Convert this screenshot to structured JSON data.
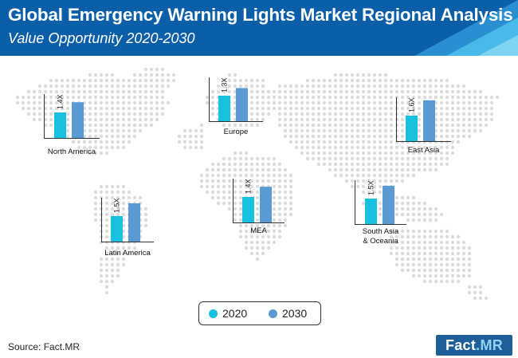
{
  "header": {
    "title": "Global Emergency Warning Lights Market Regional Analysis",
    "subtitle": "Value Opportunity 2020-2030"
  },
  "colors": {
    "banner": "#0b5fa8",
    "banner_accent": "#3ab4e6",
    "bar_2020": "#19c1e0",
    "bar_2030": "#5b9bd5",
    "map_dot": "#dcdcdc"
  },
  "chart_data": {
    "type": "bar",
    "title": "Global Emergency Warning Lights Market Regional Analysis",
    "subtitle": "Value Opportunity 2020-2030",
    "series": [
      {
        "name": "2020",
        "values": [
          1,
          1,
          1,
          1,
          1,
          1
        ]
      },
      {
        "name": "2030",
        "values": [
          1.4,
          1.5,
          1.3,
          1.4,
          1.6,
          1.5
        ]
      }
    ],
    "categories": [
      "North America",
      "Latin America",
      "Europe",
      "MEA",
      "East Asia",
      "South Asia & Oceania"
    ],
    "growth_labels": [
      "1.4X",
      "1.5X",
      "1.3X",
      "1.4X",
      "1.6X",
      "1.5X"
    ]
  },
  "legend": {
    "items": [
      "2020",
      "2030"
    ]
  },
  "source": "Source: Fact.MR",
  "logo": {
    "part1": "Fact",
    "part2": ".MR"
  }
}
